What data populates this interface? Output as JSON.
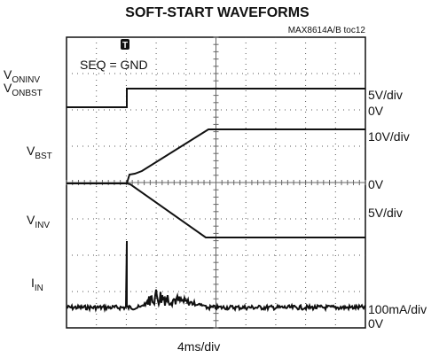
{
  "title": "SOFT-START WAVEFORMS",
  "note": "MAX8614A/B toc12",
  "condition": "SEQ = GND",
  "trigger": "T",
  "left_labels": [
    {
      "main": "V",
      "sub": "ONINV"
    },
    {
      "main": "V",
      "sub": "ONBST"
    },
    {
      "main": "V",
      "sub": "BST"
    },
    {
      "main": "V",
      "sub": "INV"
    },
    {
      "main": "I",
      "sub": "IN"
    }
  ],
  "right_labels": [
    "5V/div",
    "0V",
    "10V/div",
    "0V",
    "5V/div",
    "100mA/div",
    "0V"
  ],
  "time_scale": "4ms/div"
}
